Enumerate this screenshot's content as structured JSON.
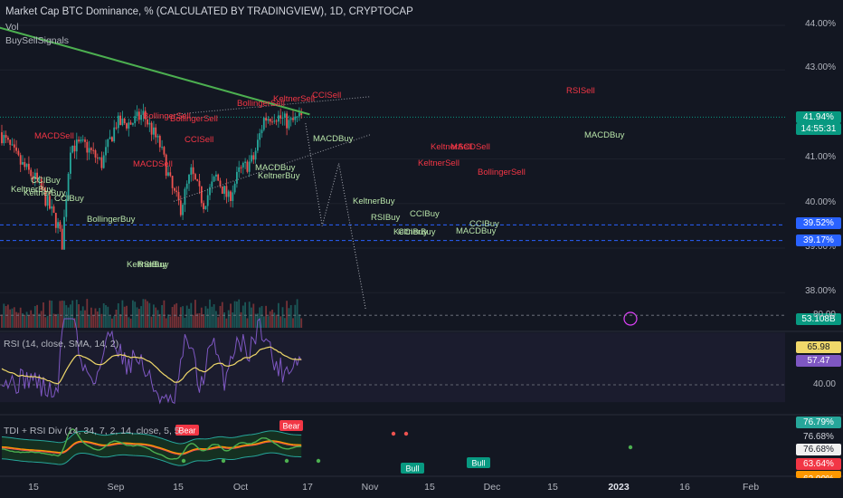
{
  "header": {
    "title": "Market Cap BTC Dominance, % (CALCULATED BY TRADINGVIEW), 1D, CRYPTOCAP",
    "indicators": [
      "Vol",
      "BuySellSignals"
    ]
  },
  "panes": {
    "rsi_label": "RSI (14, close, SMA, 14, 2)",
    "tdi_label": "TDI + RSI Div (14, 34, 7, 2, 14, close, 5, 5,"
  },
  "price_axis": {
    "ticks": [
      "44.00%",
      "43.00%",
      "41.00%",
      "40.00%",
      "39.00%",
      "38.00%"
    ],
    "current_price": "41.94%",
    "countdown": "14:55:31",
    "support_1": "39.52%",
    "support_2": "39.17%",
    "volume": "53.108B"
  },
  "rsi_axis": {
    "ticks": [
      "80.00",
      "40.00"
    ],
    "rsi_value": "57.47",
    "rsi_ma": "65.98"
  },
  "tdi_axis": {
    "values": [
      "76.79%",
      "76.68%",
      "76.68%",
      "63.64%",
      "62.00%"
    ]
  },
  "x_axis": {
    "labels": [
      "15",
      "Sep",
      "15",
      "Oct",
      "17",
      "Nov",
      "15",
      "Dec",
      "15",
      "2023",
      "16",
      "Feb"
    ]
  },
  "colors": {
    "background": "#131722",
    "up": "#26a69a",
    "down": "#ef5350",
    "trendline": "#4caf50",
    "rsi": "#7e57c2",
    "rsi_ma": "#f0d86a",
    "sell_signal": "#f23645",
    "buy_signal": "#b7e3a8"
  },
  "signals": {
    "sell": [
      "MACDSell",
      "MACDSell",
      "BollingerSell",
      "BollingerSell",
      "CCISell",
      "BollingerSell",
      "KeltnerSell",
      "CCISell",
      "KeltnerSell",
      "KeltnerSell",
      "MACDSell",
      "BollingerSell",
      "RSISell"
    ],
    "buy": [
      "CCIBuy",
      "KeltnerBuy",
      "KeltnerBuy",
      "CCIBuy",
      "BollingerBuy",
      "KeltnerBuy",
      "RSIBuy",
      "MACDBuy",
      "KeltnerBuy",
      "MACDBuy",
      "KeltnerBuy",
      "RSIBuy",
      "CCIBuy",
      "KeltnerBuy",
      "CCIBuy",
      "CCIBuy",
      "MACDBuy",
      "MACDBuy"
    ],
    "bull": "Bull",
    "bear": "Bear"
  },
  "chart_data": {
    "type": "candlestick",
    "title": "Market Cap BTC Dominance, % (CALCULATED BY TRADINGVIEW), 1D, CRYPTOCAP",
    "ylim": [
      37.5,
      44.5
    ],
    "key_prices": {
      "current": 41.94,
      "support_1": 39.52,
      "support_2": 39.17
    },
    "close_path": {
      "x_dates": [
        "Aug 10",
        "Aug 20",
        "Aug 28",
        "Sep 7",
        "Sep 9",
        "Sep 13",
        "Sep 20",
        "Sep 28",
        "Oct 5",
        "Oct 12",
        "Oct 18",
        "Oct 26",
        "Nov 1",
        "Nov 5",
        "Nov 10",
        "Nov 16",
        "Nov 22",
        "Nov 28",
        "Dec 3",
        "Dec 10",
        "Dec 15",
        "Dec 20",
        "Dec 27",
        "Jan 2"
      ],
      "y": [
        41.6,
        40.9,
        40.5,
        39.5,
        39.1,
        41.3,
        41.3,
        40.9,
        41.8,
        41.8,
        42.0,
        41.3,
        40.3,
        39.9,
        40.7,
        40.0,
        40.6,
        40.1,
        40.7,
        41.0,
        41.9,
        42.0,
        41.8,
        41.94
      ]
    },
    "projection": {
      "x_dates": [
        "Jan 3",
        "Jan 11",
        "Jan 19",
        "Feb 1"
      ],
      "y": [
        41.8,
        39.5,
        40.9,
        37.6
      ]
    },
    "trendline": {
      "from": [
        "Aug 5",
        44.0
      ],
      "to": [
        "Jan 5",
        42.0
      ]
    },
    "rsi": {
      "last": 57.47,
      "ma_last": 65.98,
      "ylim": [
        20,
        100
      ]
    }
  }
}
